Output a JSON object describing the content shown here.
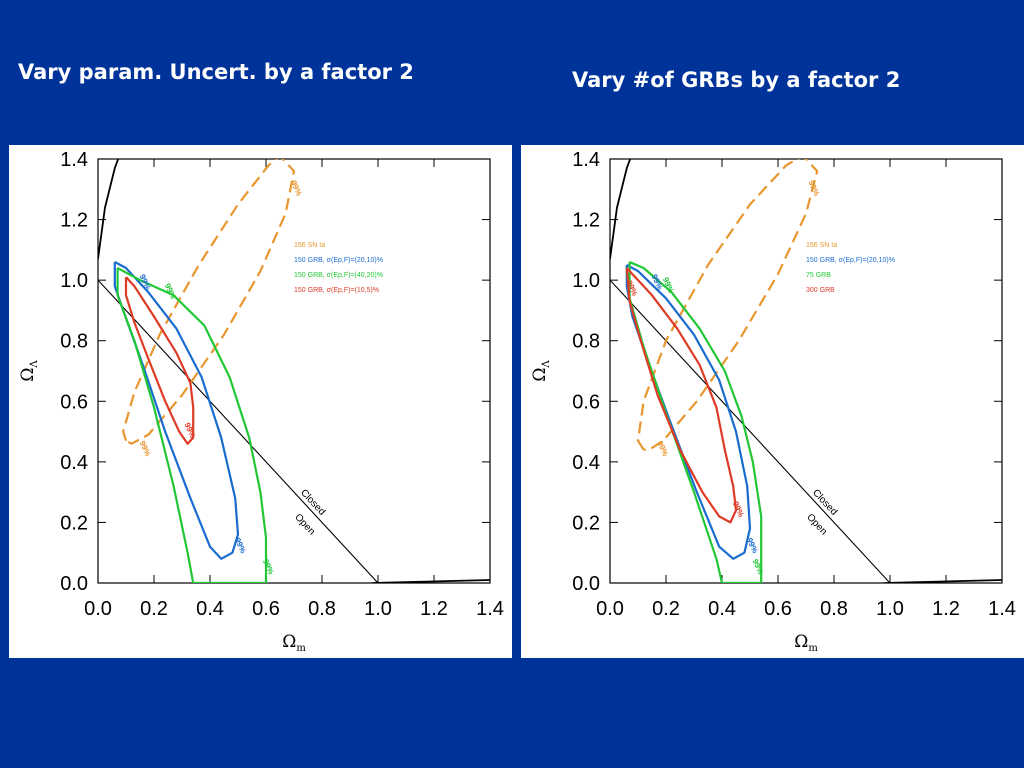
{
  "slide": {
    "background": "#003399",
    "title_left": "Vary param. Uncert. by a factor 2",
    "title_right": "Vary #of GRBs by a factor 2"
  },
  "chart_data": [
    {
      "type": "line",
      "xlabel": "Ωm",
      "ylabel": "ΩΛ",
      "xlim": [
        0,
        1.4
      ],
      "ylim": [
        0,
        1.4
      ],
      "x_ticks": [
        "0.0",
        "0.2",
        "0.4",
        "0.6",
        "0.8",
        "1.0",
        "1.2",
        "1.4"
      ],
      "y_ticks": [
        "0.0",
        "0.2",
        "0.4",
        "0.6",
        "0.8",
        "1.0",
        "1.2",
        "1.4"
      ],
      "legend_position": "right",
      "lines": [
        {
          "label_top": "Closed",
          "label_bottom": "Open",
          "points": [
            [
              0,
              1.0
            ],
            [
              1.0,
              0
            ]
          ],
          "color": "#000000"
        },
        {
          "points": [
            [
              0,
              1.07
            ],
            [
              0.025,
              1.24
            ],
            [
              0.06,
              1.37
            ],
            [
              0.08,
              1.42
            ]
          ],
          "color": "#000000"
        },
        {
          "points": [
            [
              0.98,
              0
            ],
            [
              1.4,
              0.01
            ]
          ],
          "color": "#000000"
        }
      ],
      "series": [
        {
          "name": "156 SN Ia",
          "color": "#e8962e",
          "dashed": true,
          "contour_label": "99%",
          "label_points": [
            [
              0.7,
              1.3
            ],
            [
              0.16,
              0.44
            ]
          ],
          "points": [
            [
              0.1,
              0.47
            ],
            [
              0.09,
              0.5
            ],
            [
              0.13,
              0.63
            ],
            [
              0.22,
              0.82
            ],
            [
              0.36,
              1.05
            ],
            [
              0.5,
              1.25
            ],
            [
              0.61,
              1.38
            ],
            [
              0.65,
              1.41
            ],
            [
              0.7,
              1.36
            ],
            [
              0.67,
              1.22
            ],
            [
              0.58,
              1.03
            ],
            [
              0.45,
              0.82
            ],
            [
              0.3,
              0.62
            ],
            [
              0.18,
              0.49
            ],
            [
              0.12,
              0.46
            ],
            [
              0.1,
              0.47
            ]
          ]
        },
        {
          "name": "150 GRB, σ(Ep,F)=(20,10)%",
          "color": "#1a6ccf",
          "contour_label": "99%",
          "label_points": [
            [
              0.5,
              0.12
            ],
            [
              0.16,
              0.99
            ]
          ],
          "points": [
            [
              0.06,
              1.06
            ],
            [
              0.1,
              1.04
            ],
            [
              0.18,
              0.96
            ],
            [
              0.28,
              0.84
            ],
            [
              0.37,
              0.68
            ],
            [
              0.44,
              0.48
            ],
            [
              0.49,
              0.28
            ],
            [
              0.5,
              0.16
            ],
            [
              0.48,
              0.1
            ],
            [
              0.44,
              0.08
            ],
            [
              0.4,
              0.12
            ],
            [
              0.33,
              0.28
            ],
            [
              0.24,
              0.5
            ],
            [
              0.16,
              0.72
            ],
            [
              0.09,
              0.9
            ],
            [
              0.06,
              0.98
            ],
            [
              0.06,
              1.06
            ]
          ]
        },
        {
          "name": "150 GRB, σ(Ep,F)=(40,20)%",
          "color": "#22c736",
          "contour_label": "99%",
          "label_points": [
            [
              0.6,
              0.05
            ],
            [
              0.25,
              0.96
            ]
          ],
          "points": [
            [
              0.07,
              1.04
            ],
            [
              0.15,
              1.0
            ],
            [
              0.27,
              0.95
            ],
            [
              0.38,
              0.85
            ],
            [
              0.47,
              0.68
            ],
            [
              0.54,
              0.48
            ],
            [
              0.58,
              0.3
            ],
            [
              0.6,
              0.15
            ],
            [
              0.6,
              0.0
            ],
            [
              0.34,
              0.0
            ],
            [
              0.32,
              0.1
            ],
            [
              0.27,
              0.32
            ],
            [
              0.2,
              0.58
            ],
            [
              0.13,
              0.8
            ],
            [
              0.07,
              0.95
            ],
            [
              0.07,
              1.04
            ]
          ]
        },
        {
          "name": "150 GRB, σ(Ep,F)=(10,5)%",
          "color": "#de3b26",
          "contour_label": "99%",
          "label_points": [
            [
              0.32,
              0.5
            ]
          ],
          "points": [
            [
              0.1,
              1.01
            ],
            [
              0.13,
              0.98
            ],
            [
              0.2,
              0.88
            ],
            [
              0.28,
              0.76
            ],
            [
              0.33,
              0.66
            ],
            [
              0.34,
              0.58
            ],
            [
              0.34,
              0.48
            ],
            [
              0.32,
              0.46
            ],
            [
              0.29,
              0.5
            ],
            [
              0.24,
              0.6
            ],
            [
              0.18,
              0.74
            ],
            [
              0.13,
              0.86
            ],
            [
              0.1,
              0.95
            ],
            [
              0.1,
              1.01
            ]
          ]
        }
      ]
    },
    {
      "type": "line",
      "xlabel": "Ωm",
      "ylabel": "ΩΛ",
      "xlim": [
        0,
        1.4
      ],
      "ylim": [
        0,
        1.4
      ],
      "x_ticks": [
        "0.0",
        "0.2",
        "0.4",
        "0.6",
        "0.8",
        "1.0",
        "1.2",
        "1.4"
      ],
      "y_ticks": [
        "0.0",
        "0.2",
        "0.4",
        "0.6",
        "0.8",
        "1.0",
        "1.2",
        "1.4"
      ],
      "legend_position": "right",
      "lines": [
        {
          "label_top": "Closed",
          "label_bottom": "Open",
          "points": [
            [
              0,
              1.0
            ],
            [
              1.0,
              0
            ]
          ],
          "color": "#000000"
        },
        {
          "points": [
            [
              0,
              1.07
            ],
            [
              0.025,
              1.24
            ],
            [
              0.06,
              1.37
            ],
            [
              0.08,
              1.42
            ]
          ],
          "color": "#000000"
        },
        {
          "points": [
            [
              0.98,
              0
            ],
            [
              1.4,
              0.01
            ]
          ],
          "color": "#000000"
        }
      ],
      "series": [
        {
          "name": "156 SN Ia",
          "color": "#e8962e",
          "dashed": true,
          "contour_label": "99%",
          "label_points": [
            [
              0.72,
              1.3
            ],
            [
              0.18,
              0.44
            ]
          ],
          "points": [
            [
              0.12,
              0.44
            ],
            [
              0.1,
              0.47
            ],
            [
              0.12,
              0.6
            ],
            [
              0.2,
              0.8
            ],
            [
              0.35,
              1.05
            ],
            [
              0.5,
              1.25
            ],
            [
              0.63,
              1.38
            ],
            [
              0.69,
              1.41
            ],
            [
              0.74,
              1.36
            ],
            [
              0.7,
              1.22
            ],
            [
              0.6,
              1.02
            ],
            [
              0.46,
              0.8
            ],
            [
              0.31,
              0.6
            ],
            [
              0.19,
              0.47
            ],
            [
              0.14,
              0.44
            ],
            [
              0.12,
              0.44
            ]
          ]
        },
        {
          "name": "150 GRB, σ(Ep,F)=(20,10)%",
          "color": "#1a6ccf",
          "contour_label": "99%",
          "label_points": [
            [
              0.5,
              0.12
            ],
            [
              0.16,
              0.99
            ]
          ],
          "points": [
            [
              0.06,
              1.05
            ],
            [
              0.1,
              1.03
            ],
            [
              0.2,
              0.94
            ],
            [
              0.3,
              0.82
            ],
            [
              0.39,
              0.67
            ],
            [
              0.45,
              0.5
            ],
            [
              0.49,
              0.32
            ],
            [
              0.5,
              0.18
            ],
            [
              0.48,
              0.1
            ],
            [
              0.44,
              0.08
            ],
            [
              0.39,
              0.12
            ],
            [
              0.31,
              0.3
            ],
            [
              0.22,
              0.52
            ],
            [
              0.14,
              0.72
            ],
            [
              0.08,
              0.88
            ],
            [
              0.06,
              0.98
            ],
            [
              0.06,
              1.05
            ]
          ]
        },
        {
          "name": "75 GRB",
          "color": "#22c736",
          "contour_label": "99%",
          "label_points": [
            [
              0.52,
              0.05
            ],
            [
              0.2,
              0.98
            ]
          ],
          "points": [
            [
              0.07,
              1.06
            ],
            [
              0.12,
              1.04
            ],
            [
              0.22,
              0.96
            ],
            [
              0.32,
              0.84
            ],
            [
              0.41,
              0.7
            ],
            [
              0.47,
              0.55
            ],
            [
              0.51,
              0.4
            ],
            [
              0.54,
              0.22
            ],
            [
              0.54,
              0.0
            ],
            [
              0.4,
              0.0
            ],
            [
              0.38,
              0.08
            ],
            [
              0.3,
              0.3
            ],
            [
              0.2,
              0.56
            ],
            [
              0.12,
              0.78
            ],
            [
              0.07,
              0.94
            ],
            [
              0.07,
              1.06
            ]
          ]
        },
        {
          "name": "300 GRB",
          "color": "#de3b26",
          "contour_label": "99%",
          "label_points": [
            [
              0.45,
              0.24
            ],
            [
              0.07,
              0.97
            ]
          ],
          "points": [
            [
              0.06,
              1.04
            ],
            [
              0.08,
              1.02
            ],
            [
              0.15,
              0.95
            ],
            [
              0.24,
              0.84
            ],
            [
              0.32,
              0.72
            ],
            [
              0.38,
              0.58
            ],
            [
              0.41,
              0.44
            ],
            [
              0.44,
              0.32
            ],
            [
              0.45,
              0.24
            ],
            [
              0.43,
              0.2
            ],
            [
              0.39,
              0.22
            ],
            [
              0.33,
              0.3
            ],
            [
              0.25,
              0.44
            ],
            [
              0.17,
              0.62
            ],
            [
              0.11,
              0.8
            ],
            [
              0.07,
              0.93
            ],
            [
              0.06,
              1.04
            ]
          ]
        }
      ]
    }
  ]
}
